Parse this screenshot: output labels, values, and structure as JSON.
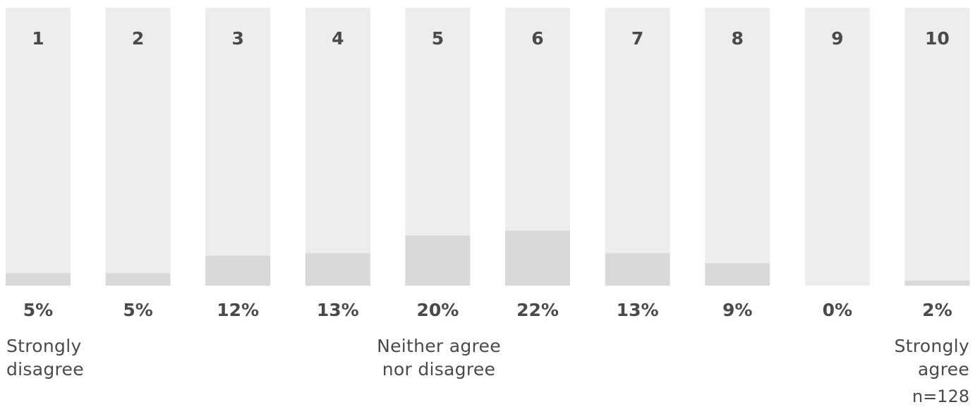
{
  "chart_data": {
    "type": "bar",
    "categories": [
      "1",
      "2",
      "3",
      "4",
      "5",
      "6",
      "7",
      "8",
      "9",
      "10"
    ],
    "values": [
      5,
      5,
      12,
      13,
      20,
      22,
      13,
      9,
      0,
      2
    ],
    "value_labels": [
      "5%",
      "5%",
      "12%",
      "13%",
      "20%",
      "22%",
      "13%",
      "9%",
      "0%",
      "2%"
    ],
    "ylim": [
      0,
      100
    ],
    "unit": "%",
    "grid": false,
    "colors": {
      "track": "#ededed",
      "bar": "#d9d9d9",
      "text": "#4a4a4a"
    },
    "scale_labels": {
      "left": [
        "Strongly",
        "disagree"
      ],
      "middle": [
        "Neither agree",
        "nor disagree"
      ],
      "right": [
        "Strongly",
        "agree"
      ]
    },
    "note": "n=128"
  }
}
